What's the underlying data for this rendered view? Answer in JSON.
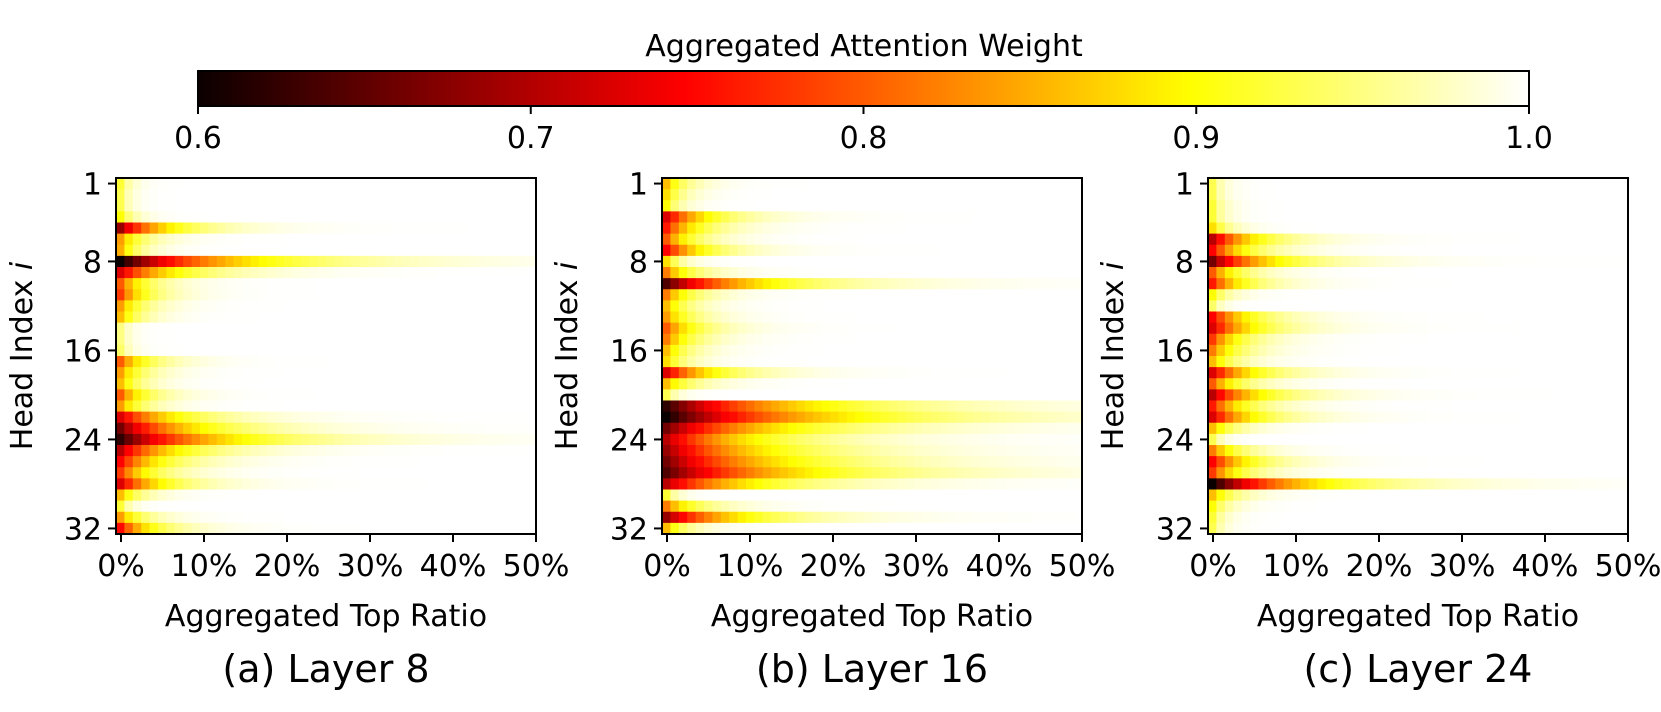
{
  "figure": {
    "colorbar": {
      "label": "Aggregated Attention Weight",
      "min": 0.6,
      "max": 1.0,
      "ticks": [
        0.6,
        0.7,
        0.8,
        0.9,
        1.0
      ],
      "tick_labels": [
        "0.6",
        "0.7",
        "0.8",
        "0.9",
        "1.0"
      ],
      "colormap": "hot",
      "colormap_stops": [
        "#0b0000",
        "#ff0000",
        "#ffff00",
        "#ffffff"
      ]
    }
  },
  "chart_data": [
    {
      "type": "heatmap",
      "title": "(a) Layer 8",
      "xlabel": "Aggregated Top Ratio",
      "ylabel": "Head Index i",
      "x_ticks": [
        0,
        10,
        20,
        30,
        40,
        50
      ],
      "x_tick_labels": [
        "0%",
        "10%",
        "20%",
        "30%",
        "40%",
        "50%"
      ],
      "y_ticks": [
        1,
        8,
        16,
        24,
        32
      ],
      "y_tick_labels": [
        "1",
        "8",
        "16",
        "24",
        "32"
      ],
      "xlim": [
        0,
        50
      ],
      "heads": 32,
      "ratio_steps": 50,
      "value_range": [
        0.6,
        1.0
      ],
      "head_min_weight": [
        0.92,
        0.93,
        0.93,
        0.9,
        0.68,
        0.84,
        0.85,
        0.6,
        0.72,
        0.8,
        0.78,
        0.84,
        0.86,
        0.95,
        0.95,
        0.94,
        0.8,
        0.84,
        0.86,
        0.8,
        0.84,
        0.72,
        0.66,
        0.62,
        0.7,
        0.74,
        0.78,
        0.72,
        0.86,
        0.92,
        0.84,
        0.75
      ],
      "head_recovery_rate": [
        0.8,
        0.9,
        0.9,
        0.6,
        0.18,
        0.35,
        0.45,
        0.08,
        0.15,
        0.3,
        0.3,
        0.35,
        0.4,
        0.9,
        0.9,
        0.8,
        0.28,
        0.35,
        0.4,
        0.3,
        0.35,
        0.15,
        0.12,
        0.09,
        0.15,
        0.2,
        0.25,
        0.2,
        0.4,
        0.9,
        0.35,
        0.25
      ]
    },
    {
      "type": "heatmap",
      "title": "(b) Layer 16",
      "xlabel": "Aggregated Top Ratio",
      "ylabel": "Head Index i",
      "x_ticks": [
        0,
        10,
        20,
        30,
        40,
        50
      ],
      "x_tick_labels": [
        "0%",
        "10%",
        "20%",
        "30%",
        "40%",
        "50%"
      ],
      "y_ticks": [
        1,
        8,
        16,
        24,
        32
      ],
      "y_tick_labels": [
        "1",
        "8",
        "16",
        "24",
        "32"
      ],
      "xlim": [
        0,
        50
      ],
      "heads": 32,
      "ratio_steps": 50,
      "value_range": [
        0.6,
        1.0
      ],
      "head_min_weight": [
        0.86,
        0.88,
        0.9,
        0.72,
        0.76,
        0.8,
        0.74,
        0.88,
        0.82,
        0.64,
        0.82,
        0.86,
        0.84,
        0.8,
        0.82,
        0.86,
        0.88,
        0.72,
        0.86,
        0.93,
        0.62,
        0.6,
        0.66,
        0.7,
        0.68,
        0.66,
        0.64,
        0.7,
        0.92,
        0.82,
        0.68,
        0.86
      ],
      "head_recovery_rate": [
        0.4,
        0.5,
        0.6,
        0.2,
        0.25,
        0.3,
        0.22,
        0.6,
        0.3,
        0.1,
        0.3,
        0.35,
        0.3,
        0.25,
        0.3,
        0.35,
        0.4,
        0.18,
        0.3,
        0.8,
        0.07,
        0.06,
        0.08,
        0.1,
        0.09,
        0.08,
        0.07,
        0.1,
        0.8,
        0.25,
        0.12,
        0.4
      ]
    },
    {
      "type": "heatmap",
      "title": "(c) Layer 24",
      "xlabel": "Aggregated Top Ratio",
      "ylabel": "Head Index i",
      "x_ticks": [
        0,
        10,
        20,
        30,
        40,
        50
      ],
      "x_tick_labels": [
        "0%",
        "10%",
        "20%",
        "30%",
        "40%",
        "50%"
      ],
      "y_ticks": [
        1,
        8,
        16,
        24,
        32
      ],
      "y_tick_labels": [
        "1",
        "8",
        "16",
        "24",
        "32"
      ],
      "xlim": [
        0,
        50
      ],
      "heads": 32,
      "ratio_steps": 50,
      "value_range": [
        0.6,
        1.0
      ],
      "head_min_weight": [
        0.93,
        0.93,
        0.92,
        0.92,
        0.88,
        0.7,
        0.74,
        0.66,
        0.8,
        0.76,
        0.9,
        0.94,
        0.74,
        0.72,
        0.78,
        0.82,
        0.86,
        0.72,
        0.8,
        0.7,
        0.76,
        0.72,
        0.86,
        0.93,
        0.82,
        0.74,
        0.78,
        0.6,
        0.86,
        0.9,
        0.92,
        0.93
      ],
      "head_recovery_rate": [
        0.8,
        0.8,
        0.7,
        0.7,
        0.5,
        0.2,
        0.25,
        0.15,
        0.3,
        0.25,
        0.5,
        0.9,
        0.22,
        0.2,
        0.28,
        0.3,
        0.35,
        0.2,
        0.3,
        0.18,
        0.25,
        0.2,
        0.35,
        0.9,
        0.3,
        0.22,
        0.28,
        0.1,
        0.35,
        0.5,
        0.7,
        0.8
      ]
    }
  ]
}
